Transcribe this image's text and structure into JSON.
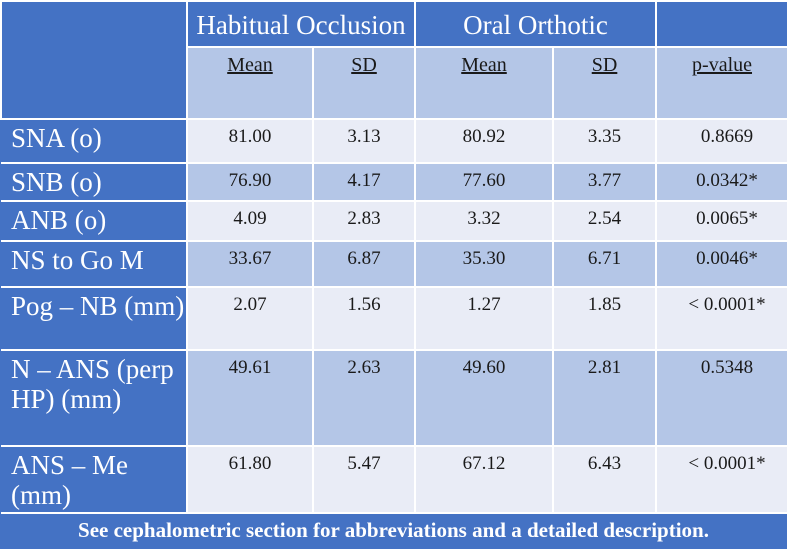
{
  "header": {
    "group1": "Habitual Occlusion",
    "group2": "Oral Orthotic",
    "subheaders": [
      "Mean",
      "SD",
      "Mean",
      "SD",
      "p-value"
    ]
  },
  "rows": [
    {
      "label": "SNA (o)",
      "values": [
        "81.00",
        "3.13",
        "80.92",
        "3.35",
        "0.8669"
      ]
    },
    {
      "label": "SNB (o)",
      "values": [
        "76.90",
        "4.17",
        "77.60",
        "3.77",
        "0.0342*"
      ]
    },
    {
      "label": "ANB (o)",
      "values": [
        "4.09",
        "2.83",
        "3.32",
        "2.54",
        "0.0065*"
      ]
    },
    {
      "label": "NS to Go M",
      "values": [
        "33.67",
        "6.87",
        "35.30",
        "6.71",
        "0.0046*"
      ]
    },
    {
      "label": "Pog – NB (mm)",
      "values": [
        "2.07",
        "1.56",
        "1.27",
        "1.85",
        "< 0.0001*"
      ]
    },
    {
      "label": "N – ANS (perp HP) (mm)",
      "values": [
        "49.61",
        "2.63",
        "49.60",
        "2.81",
        "0.5348"
      ]
    },
    {
      "label": "ANS – Me (mm)",
      "values": [
        "61.80",
        "5.47",
        "67.12",
        "6.43",
        "< 0.0001*"
      ]
    }
  ],
  "footer": "See cephalometric section for abbreviations and a detailed description.",
  "colors": {
    "accent": "#4472c4",
    "light_cell": "#e9ecf6",
    "dark_cell": "#b4c6e7",
    "text_on_accent": "#ffffff"
  }
}
